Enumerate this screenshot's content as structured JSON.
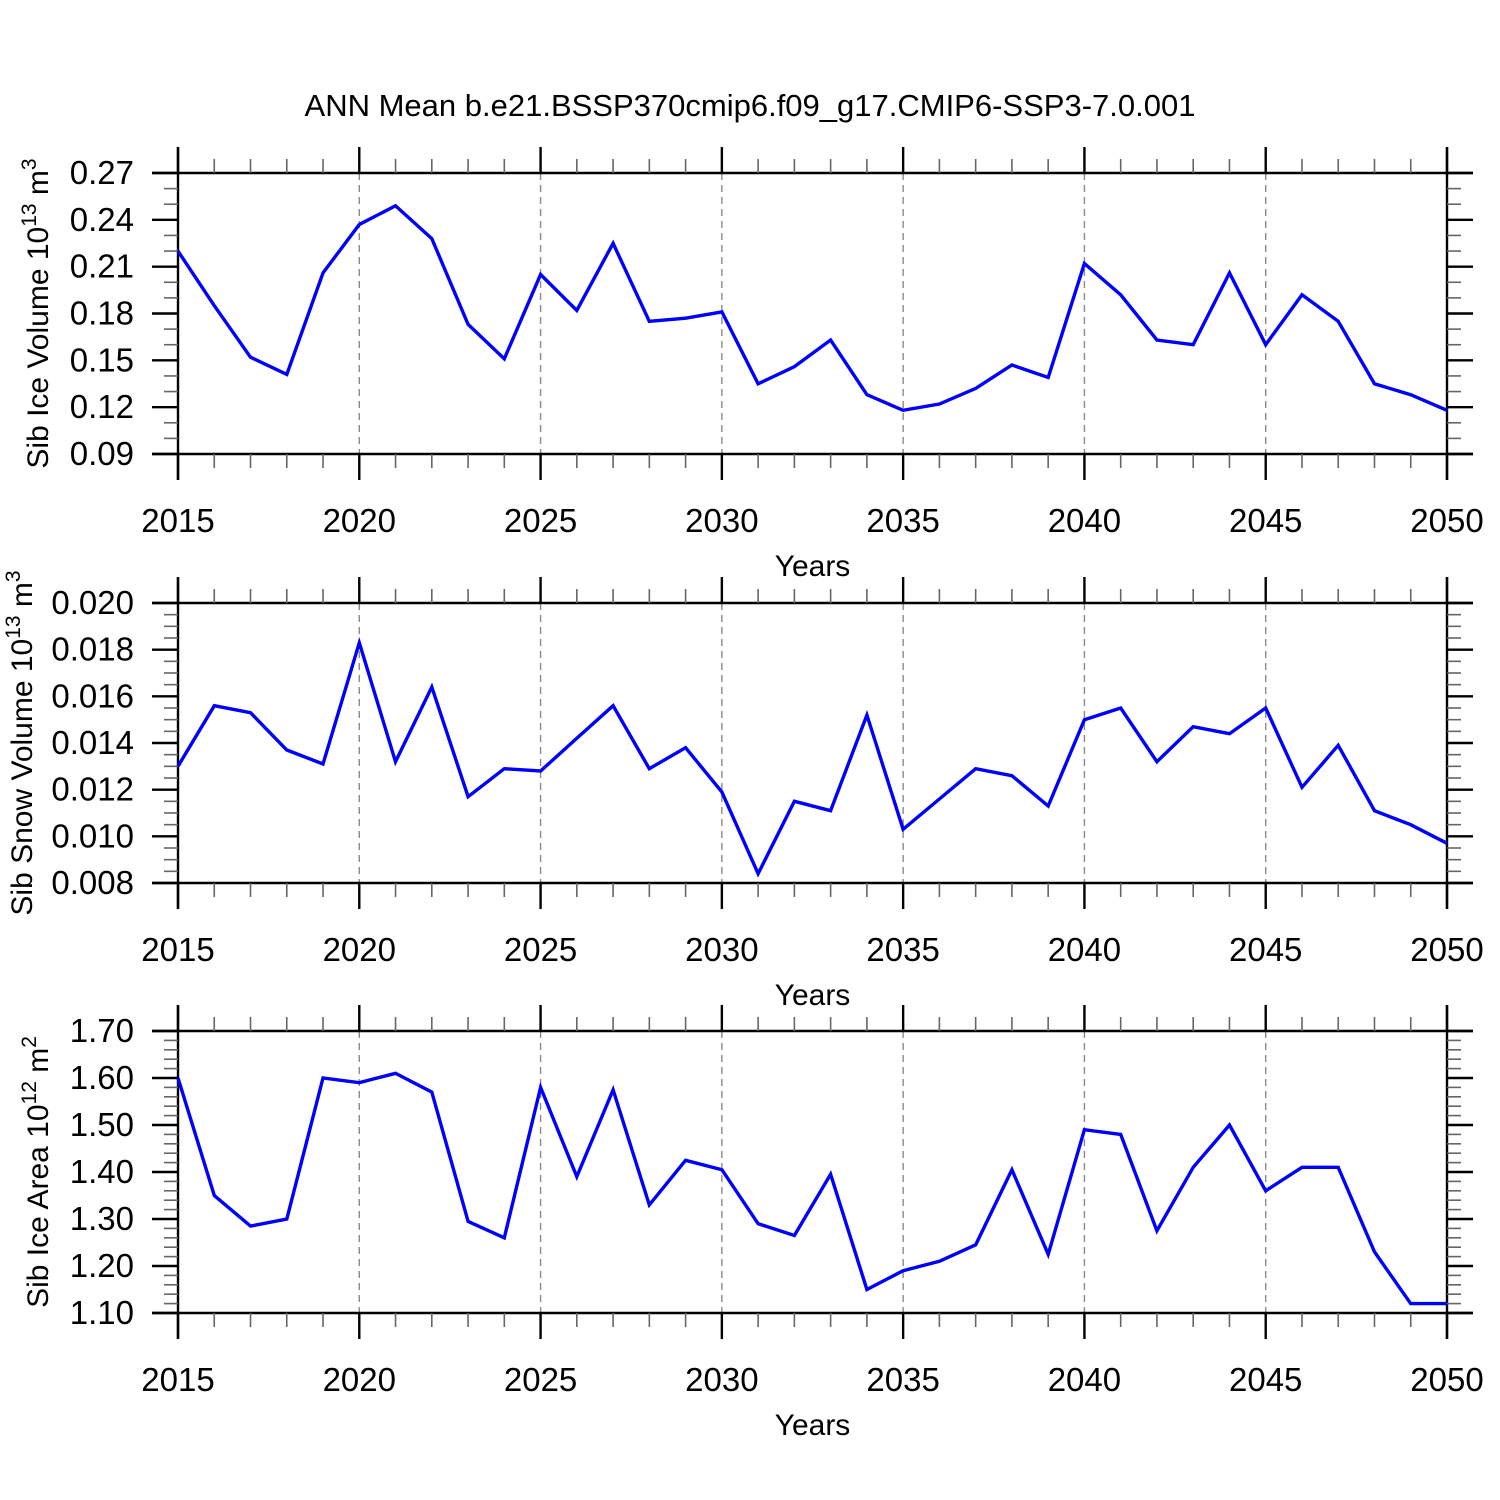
{
  "figure": {
    "title": "ANN Mean b.e21.BSSP370cmip6.f09_g17.CMIP6-SSP3-7.0.001",
    "background": "#ffffff",
    "line_color": "#0000ff",
    "grid_color": "#8a8a8a",
    "axis_color": "#000000",
    "minor_tick_color": "#666666"
  },
  "chart_data": [
    {
      "type": "line",
      "id": "ice-volume",
      "ylabel": "Sib Ice Volume 10^13 m^3",
      "ylabel_parts": [
        [
          "Sib Ice Volume 10",
          0
        ],
        [
          "13",
          1
        ],
        [
          " m",
          0
        ],
        [
          "3",
          1
        ]
      ],
      "xlabel": "Years",
      "xlim": [
        2015,
        2050
      ],
      "ylim": [
        0.09,
        0.27
      ],
      "xticks": [
        2015,
        2020,
        2025,
        2030,
        2035,
        2040,
        2045,
        2050
      ],
      "xtick_labels": [
        "2015",
        "2020",
        "2025",
        "2030",
        "2035",
        "2040",
        "2045",
        "2050"
      ],
      "xminor_step": 1,
      "yticks": [
        0.27,
        0.24,
        0.21,
        0.18,
        0.15,
        0.12,
        0.09
      ],
      "ytick_labels": [
        "0.27",
        "0.24",
        "0.21",
        "0.18",
        "0.15",
        "0.12",
        "0.09"
      ],
      "yminor_step": 0.01,
      "grid_x": [
        2020,
        2025,
        2030,
        2035,
        2040,
        2045
      ],
      "x": [
        2015,
        2016,
        2017,
        2018,
        2019,
        2020,
        2021,
        2022,
        2023,
        2024,
        2025,
        2026,
        2027,
        2028,
        2029,
        2030,
        2031,
        2032,
        2033,
        2034,
        2035,
        2036,
        2037,
        2038,
        2039,
        2040,
        2041,
        2042,
        2043,
        2044,
        2045,
        2046,
        2047,
        2048,
        2049,
        2050
      ],
      "values": [
        0.22,
        0.185,
        0.152,
        0.141,
        0.206,
        0.237,
        0.249,
        0.228,
        0.173,
        0.151,
        0.205,
        0.182,
        0.225,
        0.175,
        0.177,
        0.181,
        0.135,
        0.146,
        0.163,
        0.128,
        0.118,
        0.122,
        0.132,
        0.147,
        0.139,
        0.212,
        0.192,
        0.163,
        0.16,
        0.206,
        0.16,
        0.192,
        0.175,
        0.135,
        0.128,
        0.118
      ]
    },
    {
      "type": "line",
      "id": "snow-volume",
      "ylabel": "Sib Snow Volume 10^13 m^3",
      "ylabel_parts": [
        [
          "Sib Snow Volume 10",
          0
        ],
        [
          "13",
          1
        ],
        [
          " m",
          0
        ],
        [
          "3",
          1
        ]
      ],
      "xlabel": "Years",
      "xlim": [
        2015,
        2050
      ],
      "ylim": [
        0.008,
        0.02
      ],
      "xticks": [
        2015,
        2020,
        2025,
        2030,
        2035,
        2040,
        2045,
        2050
      ],
      "xtick_labels": [
        "2015",
        "2020",
        "2025",
        "2030",
        "2035",
        "2040",
        "2045",
        "2050"
      ],
      "xminor_step": 1,
      "yticks": [
        0.02,
        0.018,
        0.016,
        0.014,
        0.012,
        0.01,
        0.008
      ],
      "ytick_labels": [
        "0.020",
        "0.018",
        "0.016",
        "0.014",
        "0.012",
        "0.010",
        "0.008"
      ],
      "yminor_step": 0.0005,
      "grid_x": [
        2020,
        2025,
        2030,
        2035,
        2040,
        2045
      ],
      "x": [
        2015,
        2016,
        2017,
        2018,
        2019,
        2020,
        2021,
        2022,
        2023,
        2024,
        2025,
        2026,
        2027,
        2028,
        2029,
        2030,
        2031,
        2032,
        2033,
        2034,
        2035,
        2036,
        2037,
        2038,
        2039,
        2040,
        2041,
        2042,
        2043,
        2044,
        2045,
        2046,
        2047,
        2048,
        2049,
        2050
      ],
      "values": [
        0.013,
        0.0156,
        0.0153,
        0.0137,
        0.0131,
        0.0183,
        0.0132,
        0.0164,
        0.0117,
        0.0129,
        0.0128,
        0.0142,
        0.0156,
        0.0129,
        0.0138,
        0.0119,
        0.0084,
        0.0115,
        0.0111,
        0.0152,
        0.0103,
        0.0116,
        0.0129,
        0.0126,
        0.0113,
        0.015,
        0.0155,
        0.0132,
        0.0147,
        0.0144,
        0.0155,
        0.0121,
        0.0139,
        0.0111,
        0.0105,
        0.0097
      ]
    },
    {
      "type": "line",
      "id": "ice-area",
      "ylabel": "Sib Ice Area 10^12 m^2",
      "ylabel_parts": [
        [
          "Sib Ice Area 10",
          0
        ],
        [
          "12",
          1
        ],
        [
          " m",
          0
        ],
        [
          "2",
          1
        ]
      ],
      "xlabel": "Years",
      "xlim": [
        2015,
        2050
      ],
      "ylim": [
        1.1,
        1.7
      ],
      "xticks": [
        2015,
        2020,
        2025,
        2030,
        2035,
        2040,
        2045,
        2050
      ],
      "xtick_labels": [
        "2015",
        "2020",
        "2025",
        "2030",
        "2035",
        "2040",
        "2045",
        "2050"
      ],
      "xminor_step": 1,
      "yticks": [
        1.7,
        1.6,
        1.5,
        1.4,
        1.3,
        1.2,
        1.1
      ],
      "ytick_labels": [
        "1.70",
        "1.60",
        "1.50",
        "1.40",
        "1.30",
        "1.20",
        "1.10"
      ],
      "yminor_step": 0.02,
      "grid_x": [
        2020,
        2025,
        2030,
        2035,
        2040,
        2045
      ],
      "x": [
        2015,
        2016,
        2017,
        2018,
        2019,
        2020,
        2021,
        2022,
        2023,
        2024,
        2025,
        2026,
        2027,
        2028,
        2029,
        2030,
        2031,
        2032,
        2033,
        2034,
        2035,
        2036,
        2037,
        2038,
        2039,
        2040,
        2041,
        2042,
        2043,
        2044,
        2045,
        2046,
        2047,
        2048,
        2049,
        2050
      ],
      "values": [
        1.6,
        1.35,
        1.285,
        1.3,
        1.6,
        1.59,
        1.61,
        1.57,
        1.295,
        1.26,
        1.58,
        1.39,
        1.575,
        1.33,
        1.425,
        1.405,
        1.29,
        1.265,
        1.395,
        1.15,
        1.19,
        1.21,
        1.245,
        1.405,
        1.225,
        1.49,
        1.48,
        1.275,
        1.41,
        1.5,
        1.36,
        1.41,
        1.41,
        1.23,
        1.12,
        1.12
      ]
    }
  ]
}
